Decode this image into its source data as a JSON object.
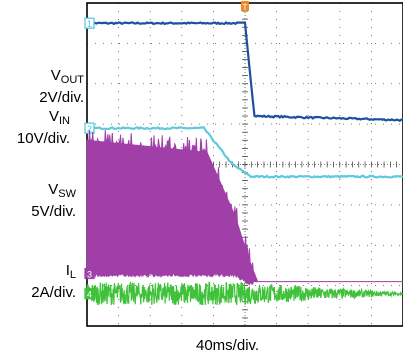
{
  "chart_data": {
    "type": "line",
    "xlabel": "40ms/div.",
    "time_per_div_ms": 40,
    "divisions": {
      "horizontal": 10,
      "vertical": 8
    },
    "trigger_marker": "T",
    "grid": true,
    "channels": [
      {
        "id": "1",
        "name": "V_OUT",
        "label_main": "V",
        "label_sub": "OUT",
        "scale": "2V/div.",
        "color": "#1f4fa0",
        "marker_color": "#4ec7e0",
        "style": "line",
        "x_div": [
          0,
          5.0,
          5.3,
          10
        ],
        "y_div": [
          7.5,
          7.5,
          5.2,
          5.1
        ]
      },
      {
        "id": "2",
        "name": "V_IN",
        "label_main": "V",
        "label_sub": "IN",
        "scale": "10V/div.",
        "color": "#5cc9dc",
        "marker_color": "#4ec7e0",
        "style": "line",
        "x_div": [
          0,
          3.7,
          4.6,
          5.2,
          10
        ],
        "y_div": [
          4.9,
          4.9,
          4.0,
          3.7,
          3.7
        ]
      },
      {
        "id": "3",
        "name": "V_SW",
        "label_main": "V",
        "label_sub": "SW",
        "scale": "5V/div.",
        "color": "#a03fa8",
        "marker_color": "#a03fa8",
        "style": "band",
        "x_div": [
          0,
          3.8,
          4.7,
          5.1,
          5.4,
          10
        ],
        "y_div": [
          1.3,
          1.3,
          1.3,
          1.1,
          1.1,
          1.1
        ],
        "top_div": [
          4.6,
          4.3,
          2.7,
          1.7,
          1.1,
          1.1
        ]
      },
      {
        "id": "4",
        "name": "I_L",
        "label_main": "I",
        "label_sub": "L",
        "scale": "2A/div.",
        "color": "#3fc23a",
        "marker_color": "#3fc23a",
        "style": "noise",
        "x_div": [
          0,
          5.0,
          10
        ],
        "y_div": [
          0.8,
          0.8,
          0.8
        ],
        "amp_div": [
          0.28,
          0.28,
          0.03
        ]
      }
    ]
  }
}
